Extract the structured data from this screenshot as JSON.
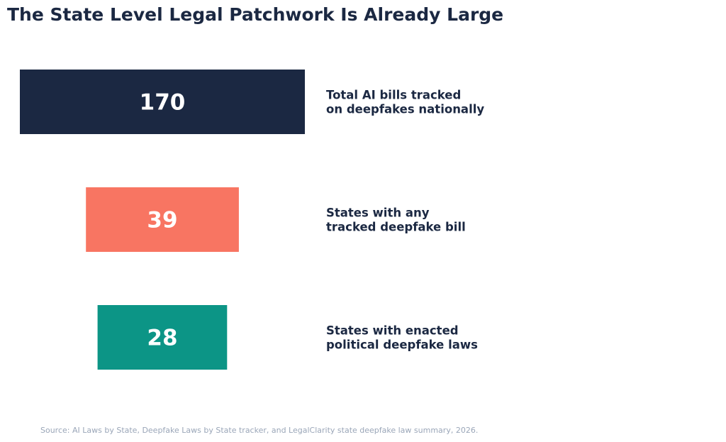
{
  "title": "The State Level Legal Patchwork Is Already Large",
  "source": "Source: AI Laws by State, Deepfake Laws by State tracker, and LegalClarity state deepfake law summary, 2026.",
  "colors": {
    "text": "#1b2842",
    "value_text": "#ffffff",
    "source": "#9aa6b8"
  },
  "chart_data": {
    "type": "bar",
    "orientation": "horizontal-centered",
    "grid": false,
    "legend": "none",
    "xlim": [
      0,
      170
    ],
    "items": [
      {
        "value": 170,
        "label_lines": [
          "Total AI bills tracked",
          "on deepfakes nationally"
        ],
        "color": "#1b2842"
      },
      {
        "value": 39,
        "label_lines": [
          "States with any",
          "tracked deepfake bill"
        ],
        "color": "#f87562"
      },
      {
        "value": 28,
        "label_lines": [
          "States with enacted",
          "political deepfake laws"
        ],
        "color": "#0c9586"
      }
    ]
  }
}
